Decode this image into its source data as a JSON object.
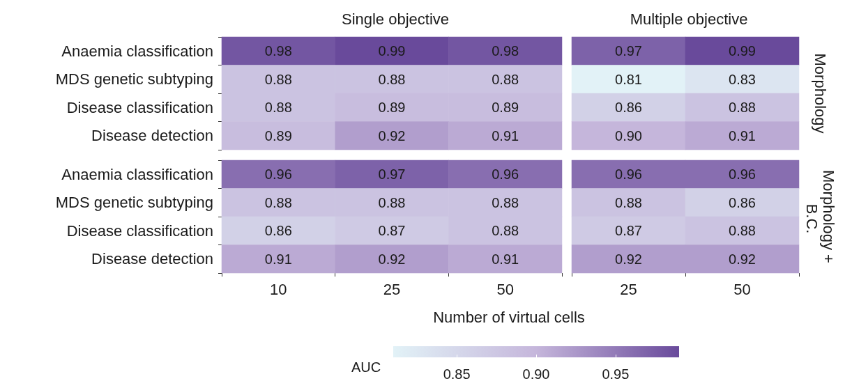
{
  "chart_data": [
    {
      "type": "heatmap",
      "title": "Single objective",
      "categories": [
        "10",
        "25",
        "50"
      ],
      "y_categories": [
        "Anaemia classification",
        "MDS genetic subtyping",
        "Disease classification",
        "Disease detection"
      ],
      "cells": [
        [
          0.98,
          0.99,
          0.98
        ],
        [
          0.88,
          0.88,
          0.88
        ],
        [
          0.88,
          0.89,
          0.89
        ],
        [
          0.89,
          0.92,
          0.91
        ]
      ],
      "data_labels": true,
      "tick_labels": "y"
    },
    {
      "type": "heatmap",
      "title": "Multiple objective",
      "y2label": "Morphology",
      "categories": [
        "25",
        "50"
      ],
      "y_categories": [
        "Anaemia classification",
        "MDS genetic subtyping",
        "Disease classification",
        "Disease detection"
      ],
      "cells": [
        [
          0.97,
          0.99
        ],
        [
          0.81,
          0.83
        ],
        [
          0.86,
          0.88
        ],
        [
          0.9,
          0.91
        ]
      ],
      "cell_labels": [
        [
          "0.97",
          "0.99"
        ],
        [
          "0.81",
          "0.83"
        ],
        [
          "0.86",
          "0.88"
        ],
        [
          "0.90",
          "0.91"
        ]
      ],
      "data_labels": true,
      "tick_labels": false
    },
    {
      "type": "heatmap",
      "xlabel": "Number of virtual cells",
      "categories": [
        "10",
        "25",
        "50"
      ],
      "y_categories": [
        "Anaemia classification",
        "MDS genetic subtyping",
        "Disease classification",
        "Disease detection"
      ],
      "cells": [
        [
          0.96,
          0.97,
          0.96
        ],
        [
          0.88,
          0.88,
          0.88
        ],
        [
          0.86,
          0.87,
          0.88
        ],
        [
          0.91,
          0.92,
          0.91
        ]
      ],
      "data_labels": true
    },
    {
      "type": "heatmap",
      "y2label": "Morphology + B.C.",
      "clabel": "AUC",
      "categories": [
        "25",
        "50"
      ],
      "y_categories": [
        "Anaemia classification",
        "MDS genetic subtyping",
        "Disease classification",
        "Disease detection"
      ],
      "cells": [
        [
          0.96,
          0.96
        ],
        [
          0.88,
          0.86
        ],
        [
          0.87,
          0.88
        ],
        [
          0.92,
          0.92
        ]
      ],
      "clim": [
        0.81,
        0.99
      ],
      "cticks": [
        0.85,
        {
          "value": 0.9,
          "label": "0.90"
        },
        0.95
      ],
      "colors": [
        "#e2f2f7",
        "#c5b6db",
        "#694a9b"
      ],
      "data_labels": true,
      "tick_labels": "x"
    }
  ]
}
